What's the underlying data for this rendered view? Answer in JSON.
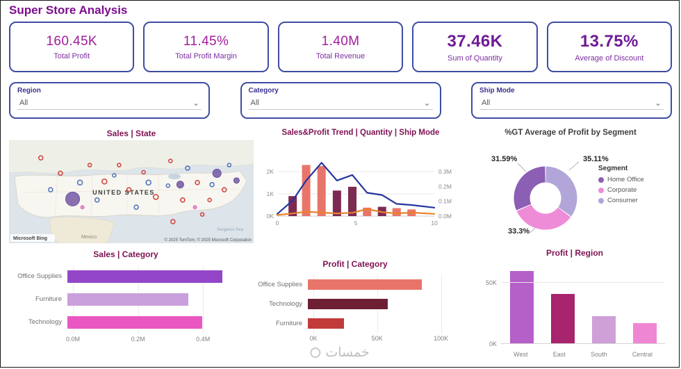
{
  "page": {
    "title": "Super Store Analysis",
    "watermark": "خمسات"
  },
  "theme": {
    "accent_border": "#3e4da1",
    "kpi_value_color": "#a21c9c",
    "kpi_value_emphasis_color": "#6e1b96",
    "chart_title_color": "#7e1253"
  },
  "kpi_cards": [
    {
      "value": "160.45K",
      "label": "Total Profit",
      "emphasis": false
    },
    {
      "value": "11.45%",
      "label": "Total Profit Margin",
      "emphasis": false
    },
    {
      "value": "1.40M",
      "label": "Total Revenue",
      "emphasis": false
    },
    {
      "value": "37.46K",
      "label": "Sum of Quantity",
      "emphasis": true
    },
    {
      "value": "13.75%",
      "label": "Average of Discount",
      "emphasis": true
    }
  ],
  "slicers": [
    {
      "label": "Region",
      "value": "All"
    },
    {
      "label": "Category",
      "value": "All"
    },
    {
      "label": "Ship Mode",
      "value": "All"
    }
  ],
  "chart_data": [
    {
      "id": "sales_state",
      "type": "map",
      "title": "Sales | State",
      "labels": {
        "country": "UNITED STATES",
        "mexico": "Mexico",
        "sea": "Sargasso Sea"
      },
      "attribution": "© 2025 TomTom, © 2025 Microsoft Corporation",
      "brand": "Microsoft Bing",
      "bubble_colors": {
        "red": "#cf4a45",
        "blue": "#5577bb",
        "purple": "#6b4fa0",
        "pink": "#e070c0"
      },
      "bubbles": [
        {
          "x": 26,
          "y": 57,
          "r": 10,
          "c": "purple"
        },
        {
          "x": 85,
          "y": 32,
          "r": 6,
          "c": "purple"
        },
        {
          "x": 70,
          "y": 43,
          "r": 5,
          "c": "purple"
        },
        {
          "x": 93,
          "y": 39,
          "r": 4,
          "c": "purple"
        },
        {
          "x": 13,
          "y": 17,
          "r": 3,
          "c": "red"
        },
        {
          "x": 21,
          "y": 32,
          "r": 3,
          "c": "red"
        },
        {
          "x": 33,
          "y": 24,
          "r": 2.5,
          "c": "red"
        },
        {
          "x": 39,
          "y": 40,
          "r": 3.5,
          "c": "red"
        },
        {
          "x": 45,
          "y": 24,
          "r": 2.5,
          "c": "red"
        },
        {
          "x": 49,
          "y": 48,
          "r": 3,
          "c": "red"
        },
        {
          "x": 55,
          "y": 31,
          "r": 2.5,
          "c": "red"
        },
        {
          "x": 60,
          "y": 55,
          "r": 3.5,
          "c": "red"
        },
        {
          "x": 66,
          "y": 20,
          "r": 2.5,
          "c": "red"
        },
        {
          "x": 71,
          "y": 58,
          "r": 3,
          "c": "red"
        },
        {
          "x": 77,
          "y": 41,
          "r": 3,
          "c": "red"
        },
        {
          "x": 82,
          "y": 58,
          "r": 2.5,
          "c": "red"
        },
        {
          "x": 88,
          "y": 48,
          "r": 3,
          "c": "red"
        },
        {
          "x": 67,
          "y": 79,
          "r": 3,
          "c": "red"
        },
        {
          "x": 79,
          "y": 72,
          "r": 2.5,
          "c": "red"
        },
        {
          "x": 17,
          "y": 48,
          "r": 3,
          "c": "blue"
        },
        {
          "x": 29,
          "y": 41,
          "r": 3.5,
          "c": "blue"
        },
        {
          "x": 36,
          "y": 58,
          "r": 3,
          "c": "blue"
        },
        {
          "x": 43,
          "y": 34,
          "r": 2.5,
          "c": "blue"
        },
        {
          "x": 52,
          "y": 65,
          "r": 3,
          "c": "blue"
        },
        {
          "x": 57,
          "y": 41,
          "r": 3.5,
          "c": "blue"
        },
        {
          "x": 65,
          "y": 44,
          "r": 2.5,
          "c": "blue"
        },
        {
          "x": 73,
          "y": 27,
          "r": 3,
          "c": "blue"
        },
        {
          "x": 83,
          "y": 43,
          "r": 3,
          "c": "blue"
        },
        {
          "x": 90,
          "y": 24,
          "r": 2.5,
          "c": "blue"
        },
        {
          "x": 30,
          "y": 65,
          "r": 2.5,
          "c": "pink"
        },
        {
          "x": 76,
          "y": 65,
          "r": 2.5,
          "c": "pink"
        }
      ]
    },
    {
      "id": "trend",
      "type": "combo",
      "title": "Sales&Profit Trend | Quantity | Ship Mode",
      "x_max": 10,
      "x_ticks": [
        {
          "label": "0",
          "x": 0
        },
        {
          "label": "5",
          "x": 5
        },
        {
          "label": "10",
          "x": 10
        }
      ],
      "left_axis": {
        "unit": "K",
        "ticks": [
          "0K",
          "1K",
          "2K"
        ]
      },
      "right_axis": {
        "unit": "M",
        "ticks": [
          "0.0M",
          "0.1M",
          "0.2M",
          "0.3M"
        ]
      },
      "bar_colors": {
        "dark": "#7d2a52",
        "salmon": "#e8756a"
      },
      "bars": [
        {
          "x": 0.98,
          "value": 0.9,
          "color": "dark"
        },
        {
          "x": 1.84,
          "value": 2.3,
          "color": "salmon"
        },
        {
          "x": 2.82,
          "value": 2.25,
          "color": "salmon"
        },
        {
          "x": 3.8,
          "value": 1.15,
          "color": "dark"
        },
        {
          "x": 4.78,
          "value": 1.32,
          "color": "dark"
        },
        {
          "x": 5.72,
          "value": 0.38,
          "color": "salmon"
        },
        {
          "x": 6.67,
          "value": 0.42,
          "color": "dark"
        },
        {
          "x": 7.6,
          "value": 0.36,
          "color": "salmon"
        },
        {
          "x": 8.55,
          "value": 0.3,
          "color": "salmon"
        }
      ],
      "lines": [
        {
          "name": "Sales",
          "color": "#24359c",
          "points": [
            [
              0,
              0.1
            ],
            [
              0.98,
              0.7
            ],
            [
              1.84,
              1.6
            ],
            [
              2.82,
              2.4
            ],
            [
              3.8,
              1.6
            ],
            [
              4.78,
              1.85
            ],
            [
              5.72,
              1.05
            ],
            [
              6.67,
              0.95
            ],
            [
              7.6,
              0.55
            ],
            [
              8.55,
              0.5
            ],
            [
              10,
              0.38
            ]
          ]
        },
        {
          "name": "Profit",
          "color": "#e6842a",
          "points": [
            [
              0,
              0.05
            ],
            [
              0.98,
              0.12
            ],
            [
              1.84,
              0.2
            ],
            [
              2.82,
              0.16
            ],
            [
              3.8,
              0.12
            ],
            [
              4.78,
              0.15
            ],
            [
              5.72,
              0.32
            ],
            [
              6.67,
              0.18
            ],
            [
              7.6,
              0.12
            ],
            [
              8.55,
              0.16
            ],
            [
              10,
              0.1
            ]
          ]
        }
      ]
    },
    {
      "id": "profit_segment",
      "type": "donut",
      "title": "%GT Average of Profit by Segment",
      "legend_title": "Segment",
      "slices": [
        {
          "label": "Consumer",
          "pct": 35.11,
          "pct_label": "35.11%",
          "color": "#b2a6d9"
        },
        {
          "label": "Corporate",
          "pct": 33.3,
          "pct_label": "33.3%",
          "color": "#ee8cd8"
        },
        {
          "label": "Home Office",
          "pct": 31.59,
          "pct_label": "31.59%",
          "color": "#8b5fb4"
        }
      ],
      "legend": [
        {
          "label": "Home Office",
          "color": "#8b5fb4"
        },
        {
          "label": "Corporate",
          "color": "#ee8cd8"
        },
        {
          "label": "Consumer",
          "color": "#b2a6d9"
        }
      ]
    },
    {
      "id": "sales_category",
      "type": "bar",
      "orientation": "h",
      "title": "Sales | Category",
      "categories": [
        "Office Supplies",
        "Furniture",
        "Technology"
      ],
      "values": [
        0.46,
        0.36,
        0.4
      ],
      "unit": "M",
      "colors": [
        "#9346c8",
        "#c9a0dc",
        "#ea57c3"
      ],
      "x_max": 0.5,
      "x_ticks": [
        {
          "label": "0.0M",
          "pos": 0
        },
        {
          "label": "0.2M",
          "pos": 0.4
        },
        {
          "label": "0.4M",
          "pos": 0.8
        }
      ]
    },
    {
      "id": "profit_category",
      "type": "bar",
      "orientation": "h",
      "title": "Profit | Category",
      "categories": [
        "Office Supplies",
        "Technology",
        "Furniture"
      ],
      "values": [
        86,
        60,
        27
      ],
      "unit": "K",
      "colors": [
        "#e8756a",
        "#6e1f34",
        "#c23b3b"
      ],
      "x_max": 110,
      "x_ticks": [
        {
          "label": "0K",
          "pos": 0
        },
        {
          "label": "50K",
          "pos": 0.4545
        },
        {
          "label": "100K",
          "pos": 0.9091
        }
      ]
    },
    {
      "id": "profit_region",
      "type": "bar",
      "orientation": "v",
      "title": "Profit | Region",
      "categories": [
        "West",
        "East",
        "South",
        "Central"
      ],
      "values": [
        60,
        41,
        23,
        17
      ],
      "unit": "K",
      "colors": [
        "#b55fc8",
        "#a8246c",
        "#cfa0d8",
        "#ef86d4"
      ],
      "y_max": 65,
      "y_ticks": [
        {
          "label": "0K",
          "pos": 0
        },
        {
          "label": "50K",
          "pos": 0.769
        }
      ]
    }
  ]
}
